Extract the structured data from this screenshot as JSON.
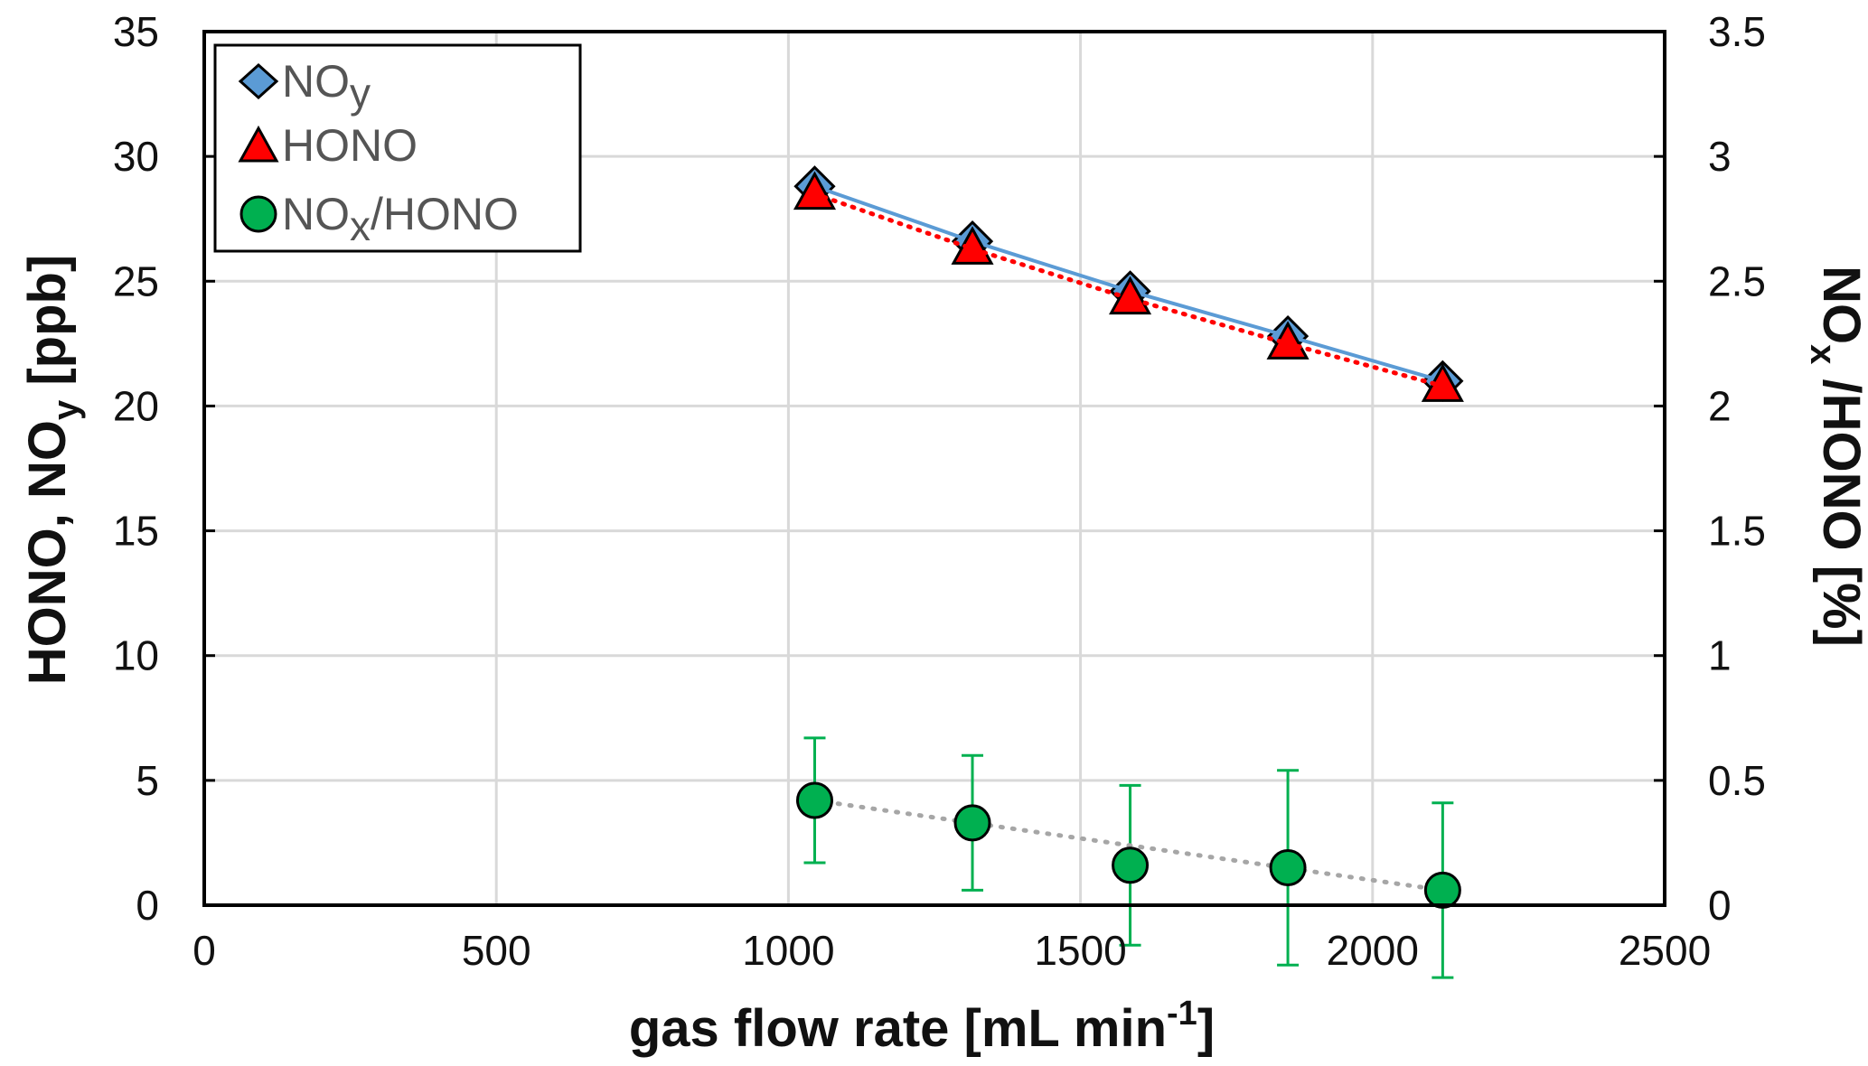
{
  "chart_data": {
    "type": "scatter",
    "xlabel": "gas flow rate [mL min",
    "xlabel_sup": "-1",
    "xlabel_end": "]",
    "ylabel": "HONO, NO",
    "ylabel_sub": "y",
    "ylabel_end": " [ppb]",
    "y2label": "NO",
    "y2label_sub": "x",
    "y2label_end": " /HONO [%]",
    "xlim": [
      0,
      2500
    ],
    "ylim": [
      0,
      35
    ],
    "y2lim": [
      0,
      3.5
    ],
    "xticks": [
      "0",
      "500",
      "1000",
      "1500",
      "2000",
      "2500"
    ],
    "yticks": [
      "0",
      "5",
      "10",
      "15",
      "20",
      "25",
      "30",
      "35"
    ],
    "y2ticks": [
      "0",
      "0.5",
      "1",
      "1.5",
      "2",
      "2.5",
      "3",
      "3.5"
    ],
    "grid": true,
    "legend_position": "top-left",
    "series": [
      {
        "name": "NO",
        "name_sub": "y",
        "axis": "left",
        "marker": "diamond",
        "color": "#5b9bd5",
        "line": "solid",
        "x": [
          1045,
          1315,
          1585,
          1855,
          2120
        ],
        "y": [
          28.8,
          26.6,
          24.6,
          22.8,
          21.0
        ]
      },
      {
        "name": "HONO",
        "axis": "left",
        "marker": "triangle",
        "color": "#ff0000",
        "line": "dotted",
        "x": [
          1045,
          1315,
          1585,
          1855,
          2120
        ],
        "y": [
          28.5,
          26.3,
          24.3,
          22.5,
          20.8
        ]
      },
      {
        "name": "NO",
        "name_sub": "x",
        "name_end": "/HONO",
        "axis": "right",
        "marker": "circle",
        "color": "#00b050",
        "line": "dotted",
        "line_color": "#a6a6a6",
        "x": [
          1045,
          1315,
          1585,
          1855,
          2120
        ],
        "y": [
          0.42,
          0.33,
          0.16,
          0.15,
          0.06
        ],
        "error": [
          0.25,
          0.27,
          0.32,
          0.39,
          0.35
        ]
      }
    ]
  }
}
